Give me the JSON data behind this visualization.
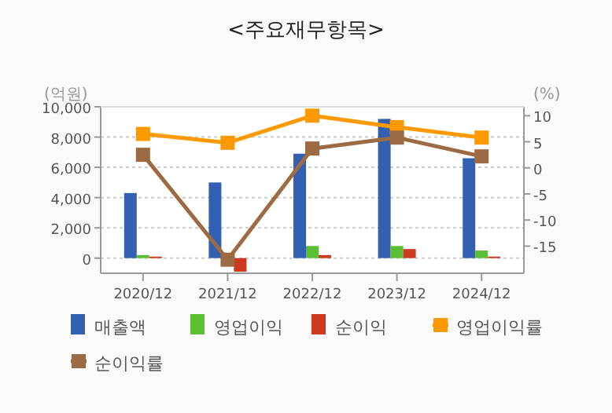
{
  "chart_data": {
    "type": "bar",
    "title": "<주요재무항목>",
    "ylabel": "(억원)",
    "y2label": "(%)",
    "categories": [
      "2020/12",
      "2021/12",
      "2022/12",
      "2023/12",
      "2024/12"
    ],
    "series": [
      {
        "name": "매출액",
        "color": "#3360b0",
        "values": [
          4300,
          5000,
          6900,
          9200,
          6600
        ]
      },
      {
        "name": "영업이익",
        "color": "#5bbf34",
        "values": [
          200,
          100,
          800,
          800,
          500
        ]
      },
      {
        "name": "순이익",
        "color": "#cc3a22",
        "values": [
          100,
          -900,
          200,
          600,
          100
        ]
      },
      {
        "name": "영업이익률",
        "type": "line",
        "axis": "y2",
        "color": "#ff9900",
        "values": [
          6.5,
          4.8,
          10.0,
          7.8,
          5.8
        ]
      },
      {
        "name": "순이익률",
        "type": "line",
        "axis": "y2",
        "color": "#9c6b43",
        "values": [
          2.5,
          -17.6,
          3.7,
          5.8,
          2.2
        ]
      }
    ],
    "ylim": [
      -1000,
      10000
    ],
    "yticks": [
      0,
      {
        "value": 2000,
        "label": "2,000"
      },
      {
        "value": 4000,
        "label": "4,000"
      },
      {
        "value": 6000,
        "label": "6,000"
      },
      {
        "value": 8000,
        "label": "8,000"
      },
      {
        "value": 10000,
        "label": "10,000"
      }
    ],
    "y2lim": [
      -20.2,
      11.7
    ],
    "y2ticks": [
      -15,
      -10,
      -5,
      0,
      5,
      10
    ],
    "grid": "y",
    "legend": "bottom",
    "marker": "square"
  }
}
